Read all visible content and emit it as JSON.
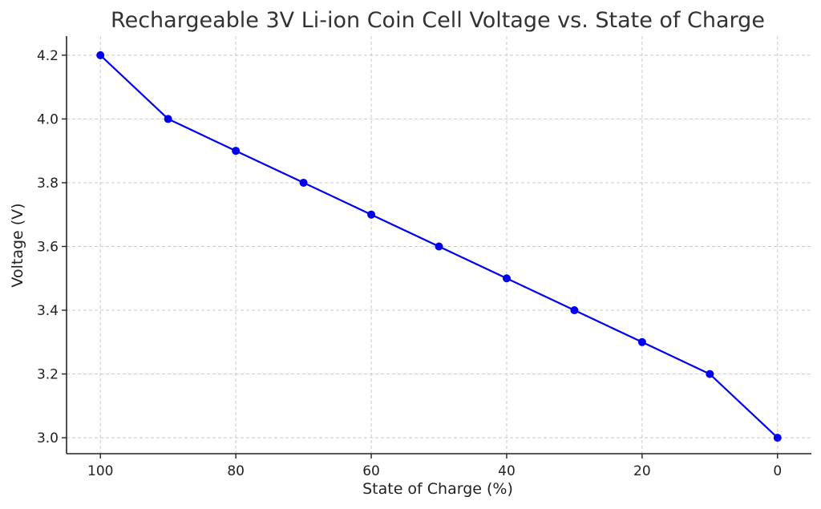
{
  "chart_data": {
    "type": "line",
    "title": "Rechargeable 3V Li-ion Coin Cell Voltage vs. State of Charge",
    "xlabel": "State of Charge (%)",
    "ylabel": "Voltage (V)",
    "x_inverted": true,
    "xlim": [
      105,
      -5
    ],
    "ylim": [
      2.95,
      4.26
    ],
    "xticks": [
      100,
      80,
      60,
      40,
      20,
      0
    ],
    "yticks": [
      "3.0",
      "3.2",
      "3.4",
      "3.6",
      "3.8",
      "4.0",
      "4.2"
    ],
    "grid": true,
    "series": [
      {
        "color": "#0000ee",
        "x": [
          100,
          90,
          80,
          70,
          60,
          50,
          40,
          30,
          20,
          10,
          0
        ],
        "y": [
          4.2,
          4.0,
          3.9,
          3.8,
          3.7,
          3.6,
          3.5,
          3.4,
          3.3,
          3.2,
          3.0
        ]
      }
    ]
  }
}
